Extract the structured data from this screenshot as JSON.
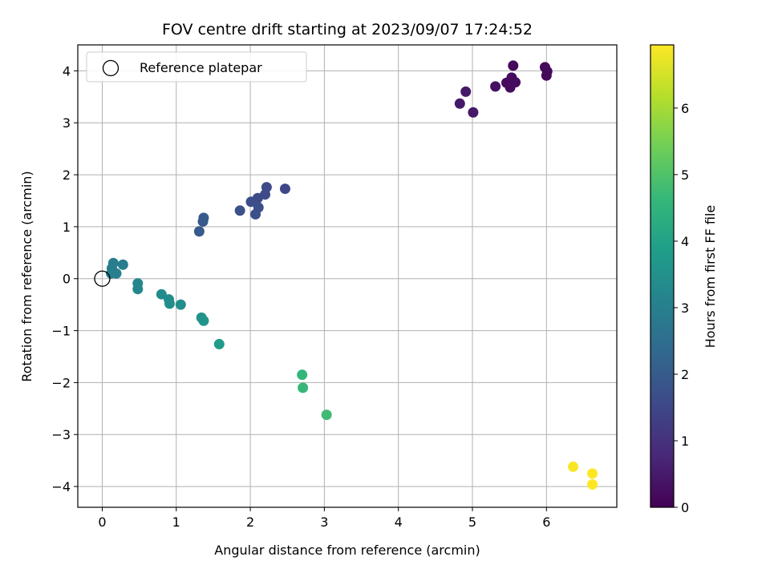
{
  "chart_data": {
    "type": "scatter",
    "title": "FOV centre drift starting at 2023/09/07 17:24:52",
    "xlabel": "Angular distance from reference (arcmin)",
    "ylabel": "Rotation from reference (arcmin)",
    "xlim": [
      -0.33,
      6.95
    ],
    "ylim": [
      -4.4,
      4.5
    ],
    "xticks": [
      0,
      1,
      2,
      3,
      4,
      5,
      6
    ],
    "yticks": [
      -4,
      -3,
      -2,
      -1,
      0,
      1,
      2,
      3,
      4
    ],
    "grid": true,
    "legend": {
      "position": "top-left",
      "entries": [
        "Reference platepar"
      ]
    },
    "reference_point": {
      "x": 0,
      "y": 0
    },
    "colorbar": {
      "label": "Hours from first FF file",
      "range": [
        0,
        6.95
      ],
      "ticks": [
        0,
        1,
        2,
        3,
        4,
        5,
        6
      ],
      "colormap": "viridis",
      "colors": [
        "#440154",
        "#482878",
        "#3e4989",
        "#31688e",
        "#26828e",
        "#1f9e89",
        "#35b779",
        "#6ece58",
        "#b5de2b",
        "#fde725"
      ]
    },
    "points": [
      {
        "x": 5.55,
        "y": 4.1,
        "t": 0.15
      },
      {
        "x": 5.98,
        "y": 4.07,
        "t": 0.15
      },
      {
        "x": 6.01,
        "y": 3.99,
        "t": 0.15
      },
      {
        "x": 6.0,
        "y": 3.91,
        "t": 0.15
      },
      {
        "x": 5.53,
        "y": 3.87,
        "t": 0.2
      },
      {
        "x": 5.46,
        "y": 3.77,
        "t": 0.2
      },
      {
        "x": 5.58,
        "y": 3.78,
        "t": 0.2
      },
      {
        "x": 5.51,
        "y": 3.68,
        "t": 0.2
      },
      {
        "x": 5.31,
        "y": 3.7,
        "t": 0.3
      },
      {
        "x": 4.91,
        "y": 3.6,
        "t": 0.45
      },
      {
        "x": 4.83,
        "y": 3.37,
        "t": 0.45
      },
      {
        "x": 5.01,
        "y": 3.2,
        "t": 0.45
      },
      {
        "x": 2.47,
        "y": 1.73,
        "t": 1.5
      },
      {
        "x": 2.22,
        "y": 1.76,
        "t": 1.6
      },
      {
        "x": 2.2,
        "y": 1.62,
        "t": 1.6
      },
      {
        "x": 2.1,
        "y": 1.55,
        "t": 1.6
      },
      {
        "x": 2.01,
        "y": 1.48,
        "t": 1.65
      },
      {
        "x": 2.11,
        "y": 1.37,
        "t": 1.7
      },
      {
        "x": 2.07,
        "y": 1.24,
        "t": 1.7
      },
      {
        "x": 1.86,
        "y": 1.31,
        "t": 1.75
      },
      {
        "x": 1.37,
        "y": 1.17,
        "t": 1.95
      },
      {
        "x": 1.36,
        "y": 1.1,
        "t": 1.95
      },
      {
        "x": 1.31,
        "y": 0.91,
        "t": 2.0
      },
      {
        "x": 0.28,
        "y": 0.27,
        "t": 2.9
      },
      {
        "x": 0.15,
        "y": 0.3,
        "t": 2.95
      },
      {
        "x": 0.13,
        "y": 0.2,
        "t": 2.95
      },
      {
        "x": 0.19,
        "y": 0.1,
        "t": 3.0
      },
      {
        "x": 0.12,
        "y": 0.1,
        "t": 3.0
      },
      {
        "x": 0.48,
        "y": -0.09,
        "t": 3.2
      },
      {
        "x": 0.48,
        "y": -0.2,
        "t": 3.2
      },
      {
        "x": 0.8,
        "y": -0.3,
        "t": 3.35
      },
      {
        "x": 0.9,
        "y": -0.4,
        "t": 3.35
      },
      {
        "x": 0.91,
        "y": -0.48,
        "t": 3.4
      },
      {
        "x": 1.06,
        "y": -0.5,
        "t": 3.4
      },
      {
        "x": 1.34,
        "y": -0.75,
        "t": 3.55
      },
      {
        "x": 1.37,
        "y": -0.81,
        "t": 3.6
      },
      {
        "x": 1.58,
        "y": -1.26,
        "t": 3.8
      },
      {
        "x": 2.7,
        "y": -1.85,
        "t": 4.6
      },
      {
        "x": 2.71,
        "y": -2.1,
        "t": 4.65
      },
      {
        "x": 3.03,
        "y": -2.62,
        "t": 4.75
      },
      {
        "x": 6.36,
        "y": -3.62,
        "t": 6.9
      },
      {
        "x": 6.62,
        "y": -3.75,
        "t": 6.95
      },
      {
        "x": 6.62,
        "y": -3.96,
        "t": 6.95
      }
    ]
  }
}
